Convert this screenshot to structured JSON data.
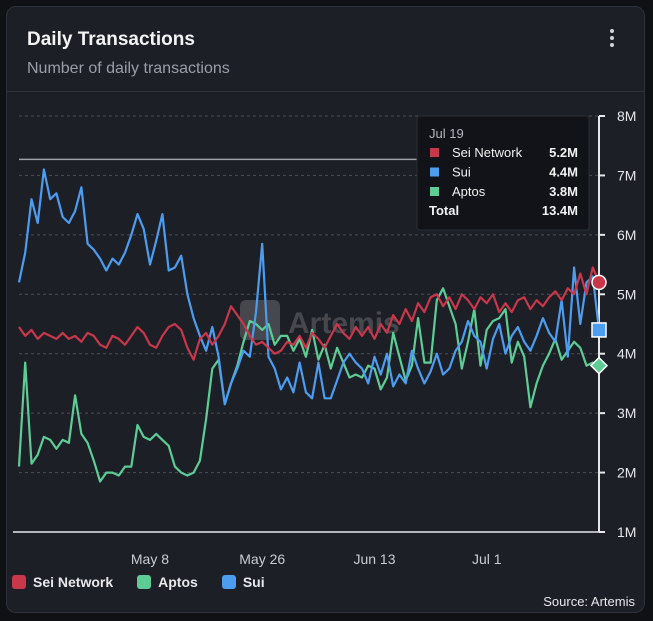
{
  "header": {
    "title": "Daily Transactions",
    "subtitle": "Number of daily transactions"
  },
  "source": "Source: Artemis",
  "watermark": "Artemis",
  "colors": {
    "sei": "#c8374a",
    "sui": "#4c9cf0",
    "aptos": "#5dcc95",
    "background": "#1d1f26",
    "grid": "#4a4d55"
  },
  "legend": [
    {
      "name": "Sei Network",
      "color": "#c8374a"
    },
    {
      "name": "Aptos",
      "color": "#5dcc95"
    },
    {
      "name": "Sui",
      "color": "#4c9cf0"
    }
  ],
  "tooltip": {
    "date": "Jul 19",
    "rows": [
      {
        "name": "Sei Network",
        "value": "5.2M",
        "color": "#c8374a"
      },
      {
        "name": "Sui",
        "value": "4.4M",
        "color": "#4c9cf0"
      },
      {
        "name": "Aptos",
        "value": "3.8M",
        "color": "#5dcc95"
      }
    ],
    "total_label": "Total",
    "total_value": "13.4M"
  },
  "chart_data": {
    "type": "line",
    "title": "Daily Transactions",
    "subtitle": "Number of daily transactions",
    "y_unit": "transactions (millions)",
    "ylim": [
      1,
      8
    ],
    "y_ticks": [
      {
        "value": 8,
        "label": "8M"
      },
      {
        "value": 7,
        "label": "7M"
      },
      {
        "value": 6,
        "label": "6M"
      },
      {
        "value": 5,
        "label": "5M"
      },
      {
        "value": 4,
        "label": "4M"
      },
      {
        "value": 3,
        "label": "3M"
      },
      {
        "value": 2,
        "label": "2M"
      },
      {
        "value": 1,
        "label": "1M"
      }
    ],
    "x_start": "Apr 17",
    "x_end": "Jul 19",
    "x_ticks": [
      {
        "day": 21,
        "label": "May 8"
      },
      {
        "day": 39,
        "label": "May 26"
      },
      {
        "day": 57,
        "label": "Jun 13"
      },
      {
        "day": 75,
        "label": "Jul 1"
      }
    ],
    "reference_line_value": 7.27,
    "highlight_day": 93,
    "series": [
      {
        "name": "Sei Network",
        "color": "#c8374a",
        "values": [
          4.45,
          4.3,
          4.4,
          4.25,
          4.35,
          4.3,
          4.25,
          4.35,
          4.25,
          4.3,
          4.2,
          4.35,
          4.3,
          4.15,
          4.1,
          4.3,
          4.25,
          4.15,
          4.3,
          4.45,
          4.35,
          4.15,
          4.1,
          4.3,
          4.45,
          4.5,
          4.4,
          4.1,
          3.9,
          4.25,
          4.35,
          4.15,
          4.3,
          4.5,
          4.8,
          4.65,
          4.5,
          4.3,
          4.15,
          4.2,
          4.1,
          4.0,
          4.05,
          4.2,
          4.15,
          4.3,
          4.1,
          4.35,
          4.25,
          4.1,
          4.3,
          4.5,
          4.35,
          4.25,
          4.45,
          4.3,
          4.45,
          4.25,
          4.5,
          4.35,
          4.65,
          4.5,
          4.75,
          4.55,
          4.85,
          4.7,
          4.95,
          5.0,
          4.8,
          4.95,
          4.75,
          5.0,
          4.9,
          4.75,
          4.95,
          4.85,
          5.0,
          4.7,
          4.85,
          4.7,
          4.9,
          4.95,
          4.75,
          4.9,
          4.8,
          4.95,
          5.05,
          4.9,
          5.1,
          5.0,
          5.35,
          5.0,
          5.45,
          5.2
        ]
      },
      {
        "name": "Sui",
        "color": "#4c9cf0",
        "values": [
          5.2,
          5.7,
          6.6,
          6.2,
          7.1,
          6.6,
          6.7,
          6.3,
          6.2,
          6.4,
          6.8,
          5.85,
          5.75,
          5.6,
          5.4,
          5.6,
          5.5,
          5.7,
          6.0,
          6.35,
          6.1,
          5.5,
          5.9,
          6.35,
          5.4,
          5.45,
          5.65,
          5.0,
          4.6,
          4.3,
          4.05,
          4.45,
          3.95,
          3.15,
          3.5,
          3.75,
          4.05,
          3.95,
          4.7,
          5.85,
          3.95,
          3.75,
          3.4,
          3.6,
          3.35,
          3.85,
          3.35,
          3.25,
          3.85,
          3.25,
          3.25,
          3.55,
          3.85,
          4.0,
          3.85,
          3.75,
          3.5,
          3.95,
          3.65,
          4.0,
          3.45,
          3.65,
          3.5,
          4.05,
          3.75,
          3.5,
          3.7,
          4.0,
          3.65,
          3.75,
          4.05,
          4.2,
          4.55,
          4.3,
          4.2,
          3.75,
          4.25,
          4.5,
          4.0,
          4.3,
          4.45,
          4.2,
          4.05,
          4.3,
          4.6,
          4.35,
          4.2,
          4.9,
          3.95,
          5.45,
          4.5,
          5.2,
          5.3,
          4.4
        ]
      },
      {
        "name": "Aptos",
        "color": "#5dcc95",
        "values": [
          2.1,
          3.85,
          2.15,
          2.3,
          2.6,
          2.55,
          2.4,
          2.55,
          2.5,
          3.3,
          2.65,
          2.5,
          2.2,
          1.85,
          2.0,
          2.0,
          1.95,
          2.1,
          2.1,
          2.8,
          2.6,
          2.55,
          2.65,
          2.55,
          2.45,
          2.1,
          2.0,
          1.95,
          2.0,
          2.2,
          2.9,
          3.75,
          3.9,
          3.15,
          3.5,
          3.8,
          4.2,
          4.55,
          4.5,
          4.4,
          4.5,
          4.15,
          4.3,
          4.3,
          4.05,
          4.25,
          3.95,
          4.4,
          3.9,
          4.15,
          3.75,
          4.1,
          3.85,
          3.6,
          3.65,
          3.6,
          3.8,
          3.75,
          3.4,
          3.6,
          4.35,
          3.95,
          3.55,
          3.8,
          4.6,
          3.85,
          3.85,
          4.9,
          5.1,
          4.8,
          4.5,
          3.75,
          4.2,
          4.75,
          3.8,
          4.4,
          4.55,
          4.6,
          4.75,
          3.85,
          4.2,
          3.95,
          3.1,
          3.5,
          3.8,
          4.0,
          4.25,
          3.9,
          4.05,
          4.2,
          4.1,
          3.8,
          3.85,
          3.8
        ]
      }
    ]
  }
}
